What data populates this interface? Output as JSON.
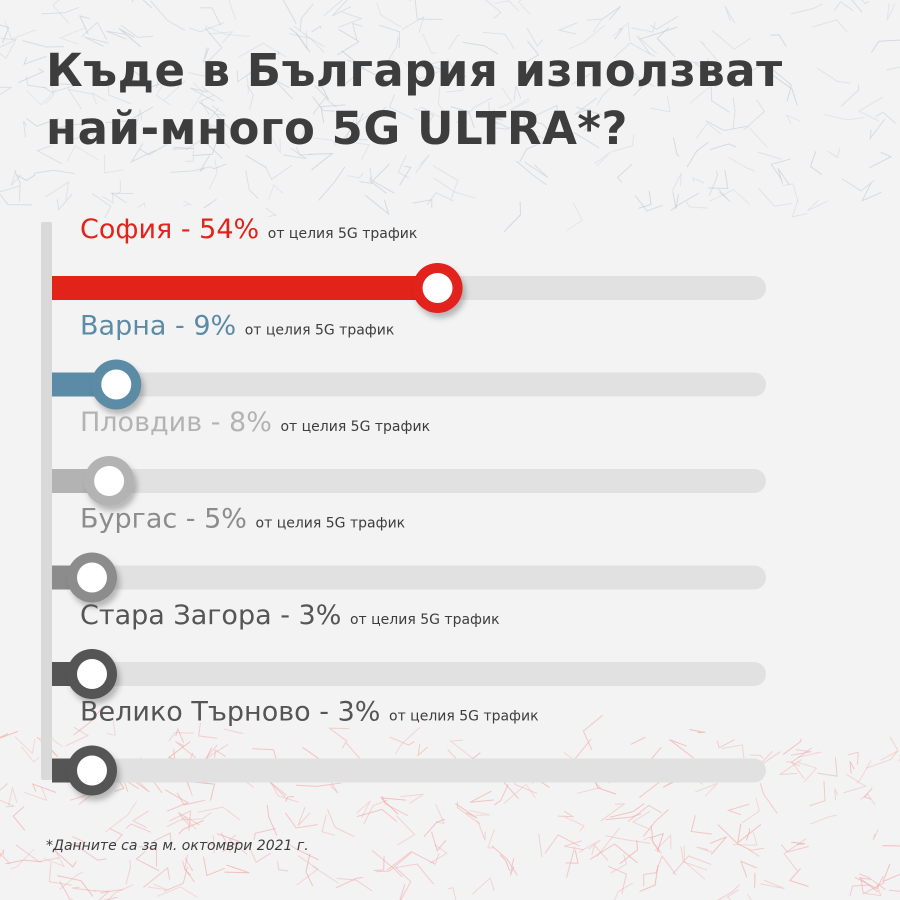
{
  "page": {
    "title_line1": "Къде в България използват",
    "title_line2": "най-много 5G ULTRA*?",
    "footnote": "*Данните са за м. октомври 2021 г."
  },
  "chart_data": {
    "type": "bar",
    "orientation": "horizontal",
    "unit": "%",
    "value_suffix": "от целия 5G трафик",
    "categories": [
      "София",
      "Варна",
      "Пловдив",
      "Бургас",
      "Стара Загора",
      "Велико Търново"
    ],
    "values": [
      54,
      9,
      8,
      5,
      3,
      3
    ],
    "colors": [
      "#e2231a",
      "#5b8ba6",
      "#b3b3b3",
      "#8c8c8c",
      "#555555",
      "#555555"
    ],
    "track_color": "#e1e1e1",
    "grid": false
  }
}
